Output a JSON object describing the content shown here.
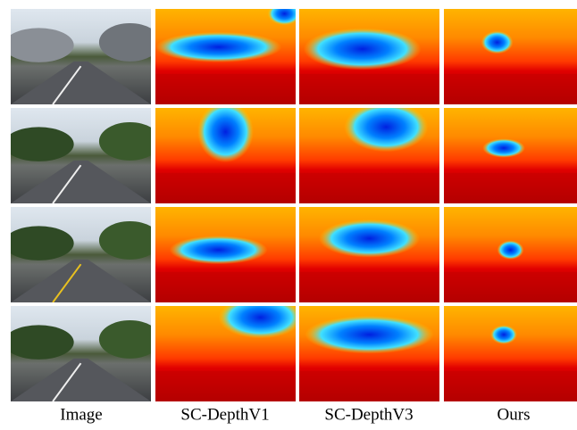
{
  "figure": {
    "columns": [
      "Image",
      "SC-DepthV1",
      "SC-DepthV3",
      "Ours"
    ]
  }
}
